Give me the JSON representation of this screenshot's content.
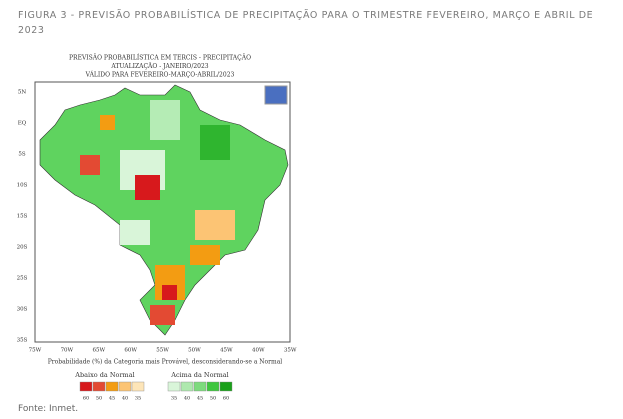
{
  "caption": "FIGURA 3 -  PREVISÃO PROBABILÍSTICA DE PRECIPITAÇÃO PARA O TRIMESTRE FEVEREIRO, MARÇO E ABRIL DE 2023",
  "map": {
    "title_lines": [
      "PREVISÃO PROBABILÍSTICA EM TERCIS - PRECIPITAÇÃO",
      "ATUALIZAÇÃO - JANEIRO/2023",
      "VÁLIDO PARA FEVEREIRO-MARÇO-ABRIL/2023"
    ],
    "lat_labels": [
      "5N",
      "EQ",
      "5S",
      "10S",
      "15S",
      "20S",
      "25S",
      "30S",
      "35S"
    ],
    "lon_labels": [
      "75W",
      "70W",
      "65W",
      "60W",
      "55W",
      "50W",
      "45W",
      "40W",
      "35W"
    ],
    "footnote": "Probabilidade (%) da Categoria mais Provável, desconsiderando-se a Normal",
    "legend": {
      "below": {
        "label": "Abaixo da Normal",
        "values": [
          60,
          50,
          45,
          40,
          35
        ]
      },
      "above": {
        "label": "Acima da Normal",
        "values": [
          35,
          40,
          45,
          50,
          60
        ]
      }
    }
  },
  "source": "Fonte: Inmet."
}
